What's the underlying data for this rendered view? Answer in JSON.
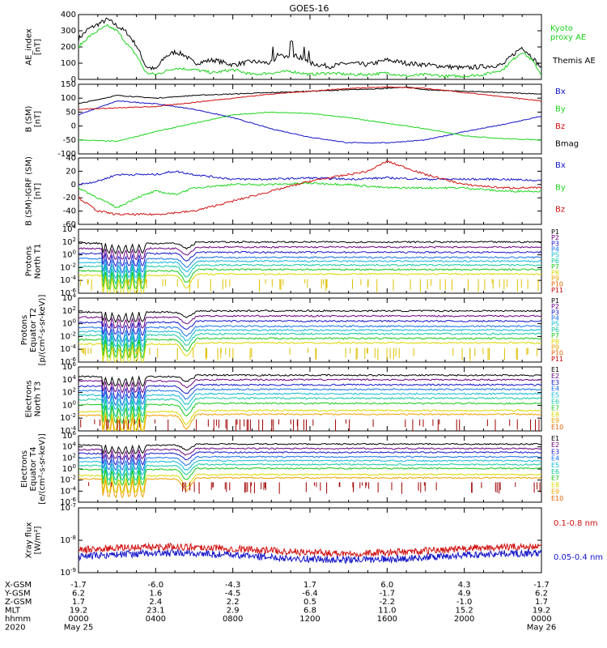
{
  "title": "GOES-16",
  "colors": {
    "black": "#000000",
    "green": "#1ed41e",
    "blue": "#1414c8",
    "red": "#d01010",
    "darkred": "#a00000",
    "palette": [
      "#000000",
      "#6a0080",
      "#1414c8",
      "#1470e6",
      "#10b8d8",
      "#10c8a0",
      "#18c818",
      "#d8d800",
      "#f0a000",
      "#e06000",
      "#c00000"
    ]
  },
  "chart_data": [
    {
      "id": "ae",
      "type": "line",
      "ylabel": "AE_index\n[nT]",
      "ylim": [
        0,
        400
      ],
      "yticks": [
        "0",
        "100",
        "200",
        "300",
        "400"
      ],
      "legend": [
        "Kyoto\nproxy AE",
        "Themis AE"
      ],
      "series": [
        {
          "name": "Themis AE",
          "color": "black",
          "x": [
            0,
            0.5,
            1,
            1.5,
            2,
            2.5,
            3,
            3.5,
            4,
            4.5,
            5,
            5.5,
            6,
            7,
            8,
            9,
            10,
            10.4,
            10.8,
            11.2,
            11.6,
            12,
            13,
            14,
            15,
            16,
            17,
            18,
            19,
            20,
            21,
            22,
            22.5,
            23,
            23.5,
            24
          ],
          "y": [
            250,
            310,
            340,
            370,
            330,
            290,
            210,
            80,
            60,
            140,
            170,
            150,
            100,
            120,
            90,
            110,
            100,
            160,
            140,
            150,
            130,
            100,
            80,
            100,
            90,
            120,
            100,
            90,
            80,
            70,
            80,
            90,
            150,
            200,
            140,
            70
          ]
        },
        {
          "name": "Kyoto proxy AE",
          "color": "green",
          "x": [
            0,
            0.5,
            1,
            1.5,
            2,
            2.5,
            3,
            3.5,
            4,
            5,
            6,
            7,
            8,
            9,
            10,
            11,
            12,
            13,
            14,
            15,
            16,
            17,
            18,
            19,
            20,
            21,
            22,
            22.5,
            23,
            23.5,
            24
          ],
          "y": [
            200,
            260,
            300,
            330,
            300,
            220,
            150,
            40,
            30,
            70,
            60,
            40,
            60,
            30,
            40,
            50,
            30,
            40,
            30,
            30,
            40,
            20,
            30,
            20,
            20,
            30,
            60,
            120,
            170,
            120,
            30
          ]
        }
      ]
    },
    {
      "id": "bsm",
      "type": "line",
      "ylabel": "B (SM)\n[nT]",
      "ylim": [
        -110,
        140
      ],
      "yticks": [
        "-100",
        "-50",
        "0",
        "50",
        "100",
        "150"
      ],
      "legend": [
        "Bx",
        "By",
        "Bz",
        "Bmag"
      ],
      "series": [
        {
          "name": "Bmag",
          "color": "black",
          "x": [
            0,
            2,
            4,
            6,
            8,
            10,
            12,
            14,
            16,
            17,
            18,
            20,
            22,
            24
          ],
          "y": [
            70,
            100,
            90,
            100,
            105,
            110,
            115,
            120,
            125,
            130,
            120,
            115,
            110,
            105
          ]
        },
        {
          "name": "Bx",
          "color": "blue",
          "x": [
            0,
            2,
            4,
            6,
            8,
            10,
            12,
            14,
            16,
            18,
            20,
            22,
            24
          ],
          "y": [
            30,
            80,
            70,
            50,
            20,
            -20,
            -50,
            -70,
            -70,
            -60,
            -30,
            -5,
            25
          ]
        },
        {
          "name": "By",
          "color": "green",
          "x": [
            0,
            2,
            4,
            6,
            8,
            10,
            12,
            14,
            16,
            18,
            20,
            22,
            24
          ],
          "y": [
            -60,
            -65,
            -30,
            0,
            30,
            40,
            35,
            20,
            0,
            -20,
            -45,
            -55,
            -60
          ]
        },
        {
          "name": "Bz",
          "color": "red",
          "x": [
            0,
            2,
            4,
            6,
            8,
            10,
            12,
            14,
            16,
            18,
            20,
            22,
            24
          ],
          "y": [
            50,
            55,
            60,
            75,
            90,
            105,
            115,
            125,
            130,
            125,
            110,
            95,
            80
          ]
        }
      ]
    },
    {
      "id": "bigrf",
      "type": "line",
      "ylabel": "B (SM)-IGRF (SM)\n[nT]",
      "ylim": [
        -60,
        40
      ],
      "yticks": [
        "-60",
        "-40",
        "-20",
        "0",
        "20",
        "40"
      ],
      "legend": [
        "Bx",
        "By",
        "Bz"
      ],
      "series": [
        {
          "name": "Bx",
          "color": "blue",
          "x": [
            0,
            1,
            2,
            3,
            4,
            5,
            6,
            8,
            10,
            12,
            14,
            16,
            18,
            20,
            22,
            24
          ],
          "y": [
            0,
            5,
            15,
            15,
            15,
            20,
            15,
            8,
            8,
            10,
            8,
            10,
            8,
            8,
            8,
            6
          ]
        },
        {
          "name": "By",
          "color": "green",
          "x": [
            0,
            1,
            2,
            3,
            4,
            5,
            6,
            8,
            10,
            12,
            14,
            16,
            18,
            20,
            22,
            24
          ],
          "y": [
            -5,
            -20,
            -35,
            -20,
            -10,
            -15,
            -5,
            0,
            0,
            2,
            0,
            -5,
            -5,
            -5,
            -10,
            -10
          ]
        },
        {
          "name": "Bz",
          "color": "red",
          "x": [
            0,
            1,
            2,
            4,
            6,
            8,
            10,
            12,
            13,
            14,
            15,
            16,
            17,
            18,
            20,
            22,
            24
          ],
          "y": [
            -20,
            -40,
            -45,
            -45,
            -40,
            -25,
            -10,
            5,
            10,
            15,
            20,
            35,
            25,
            15,
            0,
            -5,
            -5
          ]
        }
      ]
    },
    {
      "id": "protons1",
      "type": "line",
      "ylabel": "Protons\nNorth T1",
      "log": true,
      "ylim": [
        -6,
        4
      ],
      "yticks": [
        "10-6",
        "10-4",
        "10-2",
        "100",
        "102",
        "104"
      ],
      "legend": [
        "P1",
        "P2",
        "P3",
        "P4",
        "P5",
        "P6",
        "P7",
        "P8",
        "P9",
        "P10",
        "P11"
      ],
      "series_levels": [
        1.8,
        1.0,
        0.2,
        -0.6,
        -1.2,
        -1.8,
        -2.5,
        -3.2
      ]
    },
    {
      "id": "protons2",
      "type": "line",
      "ylabel": "Protons\nEquator T2\n[p/(cm²-s-sr-keV)]",
      "log": true,
      "ylim": [
        -6,
        4
      ],
      "yticks": [
        "10-6",
        "10-4",
        "10-2",
        "100",
        "102",
        "104"
      ],
      "legend": [
        "P1",
        "P2",
        "P3",
        "P4",
        "P5",
        "P6",
        "P7",
        "P8",
        "P9",
        "P10",
        "P11"
      ],
      "series_levels": [
        1.8,
        1.0,
        0.2,
        -0.6,
        -1.2,
        -1.8,
        -2.5,
        -3.2
      ]
    },
    {
      "id": "electrons3",
      "type": "line",
      "ylabel": "Electrons\nNorth T3",
      "log": true,
      "ylim": [
        -4,
        6
      ],
      "yticks": [
        "10-4",
        "10-2",
        "100",
        "102",
        "104",
        "106"
      ],
      "legend": [
        "E1",
        "E2",
        "E3",
        "E4",
        "E5",
        "E6",
        "E7",
        "E8",
        "E9",
        "E10"
      ],
      "series_levels": [
        4.5,
        3.8,
        3.0,
        2.3,
        1.6,
        0.9,
        0.1,
        -1.0,
        -1.6
      ]
    },
    {
      "id": "electrons4",
      "type": "line",
      "ylabel": "Electrons\nEquator T4\n[e/(cm²-s-sr-keV)]",
      "log": true,
      "ylim": [
        -6,
        6
      ],
      "yticks": [
        "10-6",
        "10-4",
        "10-2",
        "100",
        "102",
        "104",
        "106"
      ],
      "legend": [
        "E1",
        "E2",
        "E3",
        "E4",
        "E5",
        "E6",
        "E7",
        "E8",
        "E9",
        "E10"
      ],
      "series_levels": [
        4.3,
        3.5,
        2.8,
        2.0,
        1.3,
        0.6,
        -0.1,
        -1.2,
        -1.8
      ]
    },
    {
      "id": "xray",
      "type": "line",
      "ylabel": "Xray flux\n[W/m²]",
      "log": true,
      "ylim": [
        -9,
        -7
      ],
      "yticks": [
        "10-9",
        "10-8",
        "10-7"
      ],
      "legend": [
        "0.1-0.8 nm",
        "0.05-0.4 nm"
      ],
      "series": [
        {
          "name": "0.1-0.8 nm",
          "color": "red",
          "level": -8.3
        },
        {
          "name": "0.05-0.4 nm",
          "color": "blue",
          "level": -8.5
        }
      ]
    }
  ],
  "footer": {
    "row_labels": [
      "X-GSM",
      "Y-GSM",
      "Z-GSM",
      "MLT",
      "hhmm",
      "2020"
    ],
    "columns": [
      [
        "-1.7",
        "6.2",
        "1.7",
        "19.2",
        "0000",
        "May 25"
      ],
      [
        "-6.0",
        "1.6",
        "2.4",
        "23.1",
        "0400",
        ""
      ],
      [
        "-4.3",
        "-4.5",
        "2.2",
        "2.9",
        "0800",
        ""
      ],
      [
        "1.7",
        "-6.4",
        "0.5",
        "6.8",
        "1200",
        ""
      ],
      [
        "6.0",
        "-1.7",
        "-2.2",
        "11.0",
        "1600",
        ""
      ],
      [
        "4.3",
        "4.9",
        "-1.0",
        "15.2",
        "2000",
        ""
      ],
      [
        "-1.7",
        "6.2",
        "1.7",
        "19.2",
        "0000",
        "May 26"
      ]
    ]
  }
}
